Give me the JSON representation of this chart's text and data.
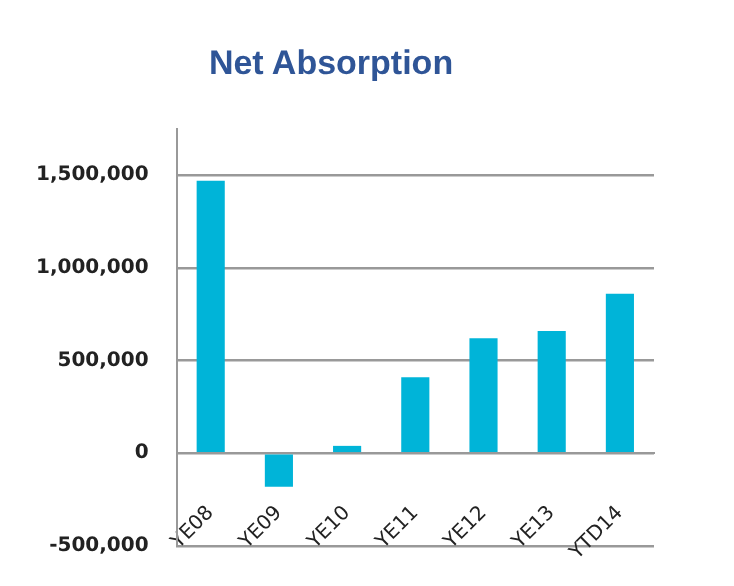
{
  "chart_data": {
    "type": "bar",
    "title": "Net Absorption",
    "categories": [
      "YE08",
      "YE09",
      "YE10",
      "YE11",
      "YE12",
      "YE13",
      "YTD14"
    ],
    "values": [
      1470000,
      -180000,
      40000,
      410000,
      620000,
      660000,
      860000
    ],
    "color": "#00b4d8",
    "ylim": [
      -500000,
      1750000
    ],
    "yticks": [
      {
        "value": -500000,
        "label": "-500,000"
      },
      0,
      {
        "value": 500000,
        "label": "500,000"
      },
      {
        "value": 1000000,
        "label": "1,000,000"
      },
      {
        "value": 1500000,
        "label": "1,500,000"
      }
    ],
    "grid": "y",
    "legend": false
  }
}
